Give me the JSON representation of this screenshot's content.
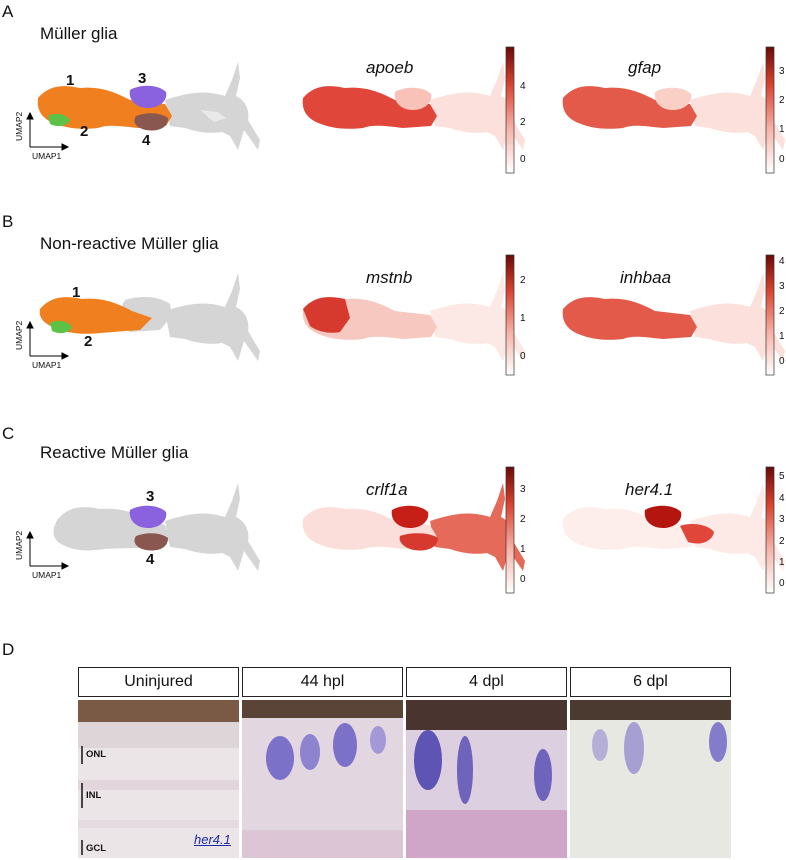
{
  "panels": {
    "A": {
      "letter": "A",
      "title": "Müller glia",
      "umap": {
        "xlabel": "UMAP1",
        "ylabel": "UMAP2",
        "clusters": [
          "1",
          "2",
          "3",
          "4"
        ]
      },
      "genes": [
        {
          "name": "apoeb",
          "ticks": [
            "0",
            "2",
            "4"
          ]
        },
        {
          "name": "gfap",
          "ticks": [
            "0",
            "1",
            "2",
            "3"
          ]
        }
      ]
    },
    "B": {
      "letter": "B",
      "title": "Non-reactive Müller glia",
      "umap": {
        "xlabel": "UMAP1",
        "ylabel": "UMAP2",
        "clusters": [
          "1",
          "2"
        ]
      },
      "genes": [
        {
          "name": "mstnb",
          "ticks": [
            "0",
            "1",
            "2"
          ]
        },
        {
          "name": "inhbaa",
          "ticks": [
            "0",
            "1",
            "2",
            "3",
            "4"
          ]
        }
      ]
    },
    "C": {
      "letter": "C",
      "title": "Reactive Müller glia",
      "umap": {
        "xlabel": "UMAP1",
        "ylabel": "UMAP2",
        "clusters": [
          "3",
          "4"
        ]
      },
      "genes": [
        {
          "name": "crlf1a",
          "ticks": [
            "0",
            "1",
            "2",
            "3"
          ]
        },
        {
          "name": "her4.1",
          "ticks": [
            "0",
            "1",
            "2",
            "3",
            "4",
            "5"
          ]
        }
      ]
    },
    "D": {
      "letter": "D",
      "conditions": [
        "Uninjured",
        "44 hpl",
        "4 dpl",
        "6 dpl"
      ],
      "layers": [
        "ONL",
        "INL",
        "GCL"
      ],
      "probe": "her4.1"
    }
  },
  "colors": {
    "cluster1": "#f07f1f",
    "cluster2": "#5cc246",
    "cluster3": "#8a62e0",
    "cluster4": "#8a5650",
    "umap_grey": "#d5d5d5",
    "expr_high": "#b5150f",
    "expr_low": "#fbe3e0",
    "stain": "#4b3fae"
  }
}
